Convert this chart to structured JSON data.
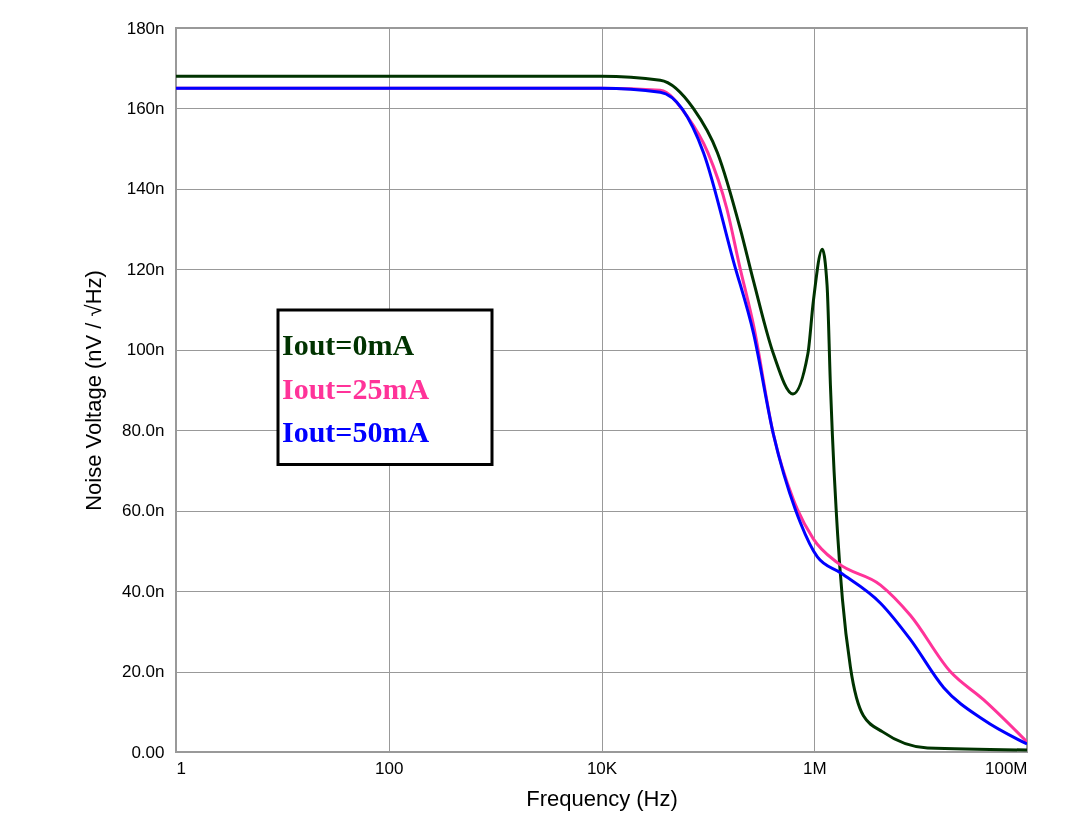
{
  "chart_data": {
    "type": "line",
    "xlabel": "Frequency (Hz)",
    "ylabel": "Noise Voltage (nV / √Hz)",
    "log": "x",
    "xlim": [
      1,
      100000000
    ],
    "ylim": [
      0,
      180
    ],
    "xticks": [
      1,
      100,
      {
        "value": 10000,
        "label": "10K"
      },
      {
        "value": 1000000,
        "label": "1M"
      },
      {
        "value": 100000000,
        "label": "100M"
      }
    ],
    "yticks": [
      {
        "value": 0,
        "label": "0.00"
      },
      {
        "value": 20,
        "label": "20.0n"
      },
      {
        "value": 40,
        "label": "40.0n"
      },
      {
        "value": 60,
        "label": "60.0n"
      },
      {
        "value": 80,
        "label": "80.0n"
      },
      {
        "value": 100,
        "label": "100n"
      },
      {
        "value": 120,
        "label": "120n"
      },
      {
        "value": 140,
        "label": "140n"
      },
      {
        "value": 160,
        "label": "160n"
      },
      {
        "value": 180,
        "label": "180n"
      }
    ],
    "grid": true,
    "legend": "left",
    "line_style": "solid",
    "series": [
      {
        "name": "Iout=0mA",
        "color": "#003300",
        "x": [
          1,
          10000,
          35700,
          73000,
          123000,
          202000,
          269000,
          413000,
          631000,
          871000,
          980000,
          1190000,
          1320000,
          1420000,
          1480000,
          1660000,
          1840000,
          2190000,
          2900000,
          4400000,
          11600000,
          100000000
        ],
        "values": [
          168,
          168,
          167,
          160,
          149,
          130,
          117,
          99,
          89,
          99,
          112,
          125,
          116,
          91,
          79,
          54,
          38,
          21,
          9,
          5,
          1,
          0.5
        ]
      },
      {
        "name": "Iout=25mA",
        "color": "#ff3399",
        "x": [
          1,
          10000,
          35700,
          64000,
          100000,
          151000,
          198000,
          269000,
          413000,
          631000,
          980000,
          1660000,
          4200000,
          8000000,
          19000000,
          39000000,
          100000000
        ],
        "values": [
          165,
          165,
          164.5,
          158,
          149,
          135,
          121,
          106,
          79,
          63,
          53,
          47,
          41.5,
          34,
          20,
          13,
          2.5
        ]
      },
      {
        "name": "Iout=50mA",
        "color": "#0000ff",
        "x": [
          1,
          10000,
          35700,
          91000,
          174000,
          269000,
          413000,
          741000,
          1070000,
          1780000,
          4200000,
          8000000,
          16500000,
          39000000,
          100000000
        ],
        "values": [
          165,
          165,
          164,
          149,
          122,
          104,
          79,
          57,
          48.5,
          44.5,
          37,
          28,
          16,
          8,
          2
        ]
      }
    ]
  }
}
